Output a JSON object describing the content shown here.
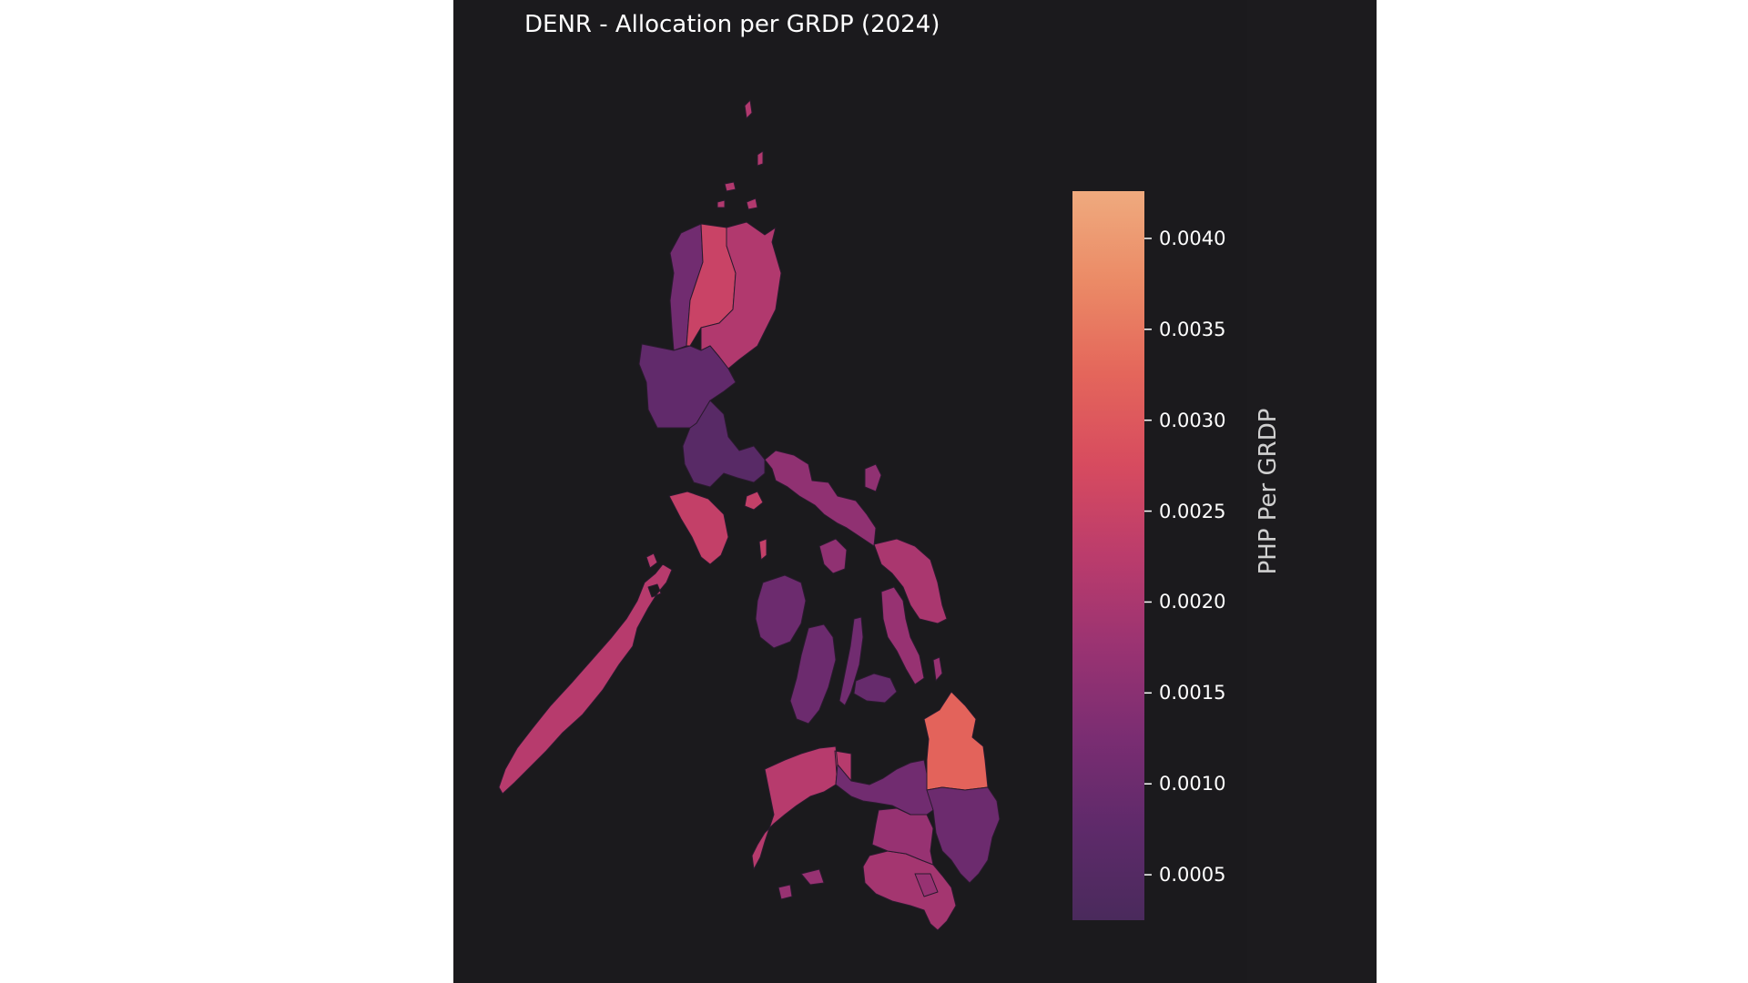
{
  "title": "DENR - Allocation per GRDP (2024)",
  "colorbar": {
    "label": "PHP Per GRDP",
    "range": [
      0.00025,
      0.00426
    ],
    "ticks": [
      {
        "value": 0.004,
        "label": "0.0040"
      },
      {
        "value": 0.0035,
        "label": "0.0035"
      },
      {
        "value": 0.003,
        "label": "0.0030"
      },
      {
        "value": 0.0025,
        "label": "0.0025"
      },
      {
        "value": 0.002,
        "label": "0.0020"
      },
      {
        "value": 0.0015,
        "label": "0.0015"
      },
      {
        "value": 0.001,
        "label": "0.0010"
      },
      {
        "value": 0.0005,
        "label": "0.0005"
      }
    ],
    "colormap": [
      "#4a2a5c",
      "#5e2a6a",
      "#7a2d72",
      "#9a3372",
      "#bb3c6c",
      "#d74b5f",
      "#e4665b",
      "#eb8a66",
      "#efaa7e"
    ]
  },
  "chart_data": {
    "type": "choropleth",
    "title": "DENR - Allocation per GRDP (2024)",
    "colorbar_label": "PHP Per GRDP",
    "range": [
      0.00025,
      0.00426
    ]
  },
  "regions": [
    {
      "id": "batanes-islands",
      "value": 0.0021
    },
    {
      "id": "babuyan-islands",
      "value": 0.0021
    },
    {
      "id": "ilocos",
      "value": 0.0011
    },
    {
      "id": "cordillera",
      "value": 0.0025
    },
    {
      "id": "cagayan-valley",
      "value": 0.0021
    },
    {
      "id": "central-luzon",
      "value": 0.0008
    },
    {
      "id": "calabarzon",
      "value": 0.0006
    },
    {
      "id": "bicol",
      "value": 0.0016
    },
    {
      "id": "catanduanes",
      "value": 0.0016
    },
    {
      "id": "mindoro",
      "value": 0.0024
    },
    {
      "id": "marinduque",
      "value": 0.0024
    },
    {
      "id": "romblon",
      "value": 0.0024
    },
    {
      "id": "masbate",
      "value": 0.0016
    },
    {
      "id": "palawan",
      "value": 0.0022
    },
    {
      "id": "western-visayas",
      "value": 0.001
    },
    {
      "id": "negros",
      "value": 0.001
    },
    {
      "id": "cebu",
      "value": 0.0011
    },
    {
      "id": "bohol",
      "value": 0.0009
    },
    {
      "id": "samar",
      "value": 0.002
    },
    {
      "id": "leyte",
      "value": 0.0017
    },
    {
      "id": "zamboanga",
      "value": 0.0022
    },
    {
      "id": "northern-mindanao",
      "value": 0.0011
    },
    {
      "id": "caraga",
      "value": 0.0032
    },
    {
      "id": "davao",
      "value": 0.001
    },
    {
      "id": "soccsksargen",
      "value": 0.0019
    },
    {
      "id": "barmm",
      "value": 0.0017
    }
  ]
}
